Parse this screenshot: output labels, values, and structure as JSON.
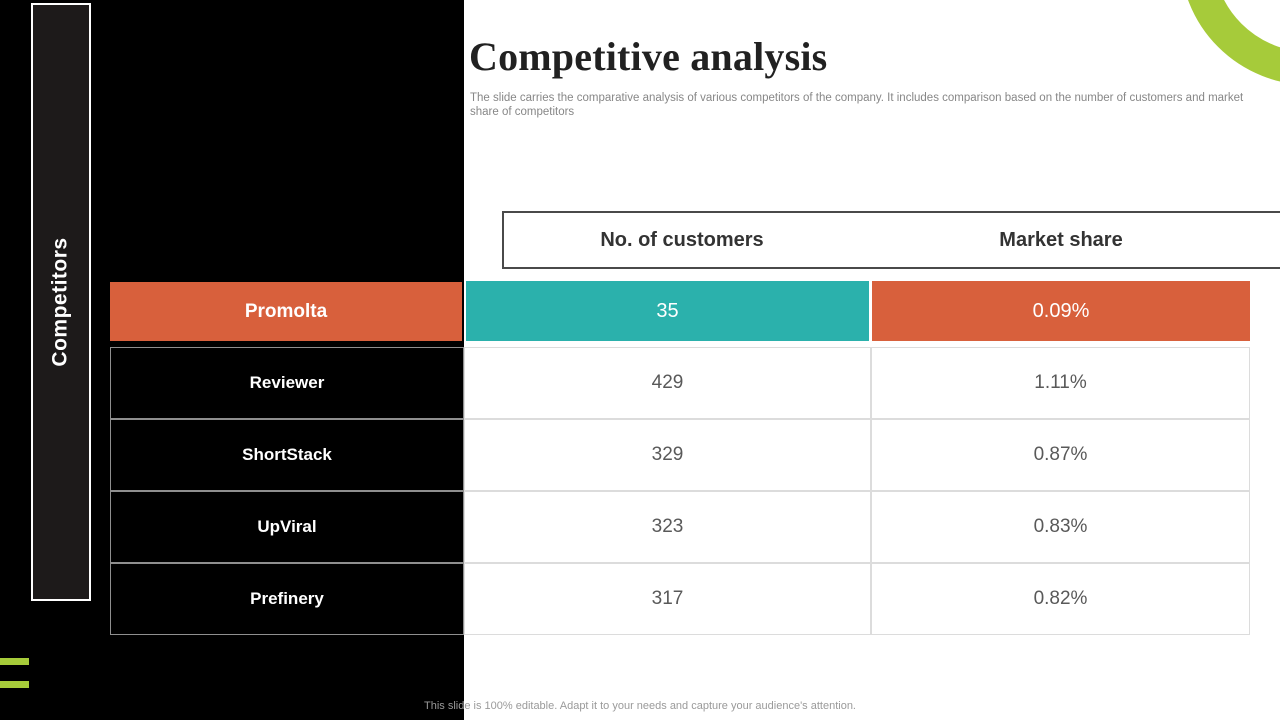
{
  "slide": {
    "title": "Competitive analysis",
    "subtitle": "The slide carries the comparative analysis of various competitors of the company. It includes comparison based on the number of customers and market share of competitors",
    "sidebar_label": "Competitors",
    "footer_note": "This slide is 100% editable. Adapt it to your needs and capture your audience's attention."
  },
  "table": {
    "row_header": "Competitors",
    "headers": [
      "No. of customers",
      "Market share"
    ],
    "rows": [
      {
        "name": "Promolta",
        "customers": "35",
        "market_share": "0.09%",
        "highlighted": true
      },
      {
        "name": "Reviewer",
        "customers": "429",
        "market_share": "1.11%",
        "highlighted": false
      },
      {
        "name": "ShortStack",
        "customers": "329",
        "market_share": "0.87%",
        "highlighted": false
      },
      {
        "name": "UpViral",
        "customers": "323",
        "market_share": "0.83%",
        "highlighted": false
      },
      {
        "name": "Prefinery",
        "customers": "317",
        "market_share": "0.82%",
        "highlighted": false
      }
    ]
  },
  "chart_data": {
    "type": "table",
    "title": "Competitive analysis",
    "columns": [
      "Competitor",
      "No. of customers",
      "Market share"
    ],
    "rows": [
      [
        "Promolta",
        35,
        "0.09%"
      ],
      [
        "Reviewer",
        429,
        "1.11%"
      ],
      [
        "ShortStack",
        329,
        "0.87%"
      ],
      [
        "UpViral",
        323,
        "0.83%"
      ],
      [
        "Prefinery",
        317,
        "0.82%"
      ]
    ],
    "highlighted_row": "Promolta"
  },
  "colors": {
    "accent_orange": "#d8603c",
    "accent_teal": "#2bb1ac",
    "accent_green": "#a6cb3a",
    "slide_background": "#000000",
    "sidebar_fill": "#1d1a1a",
    "header_text": "#333333",
    "value_text": "#595959",
    "muted_text": "#878787"
  }
}
